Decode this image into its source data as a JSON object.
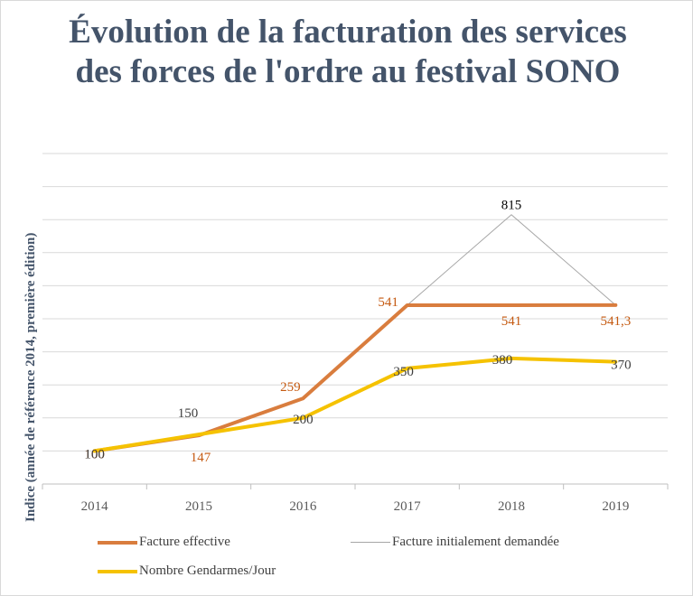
{
  "chart_data": {
    "type": "line",
    "title": "Évolution de la facturation des services des forces de l'ordre au festival SONO",
    "ylabel": "Indice (année de référence 2014, première édition)",
    "xlabel": "",
    "categories": [
      "2014",
      "2015",
      "2016",
      "2017",
      "2018",
      "2019"
    ],
    "ylim": [
      0,
      1000
    ],
    "grid": true,
    "legend_position": "bottom",
    "series": [
      {
        "name": "Facture effective",
        "values": [
          100,
          147,
          259,
          541,
          541,
          541.3
        ],
        "labels": [
          "100",
          "147",
          "259",
          "541",
          "541",
          "541,3"
        ],
        "color": "#d97d3e"
      },
      {
        "name": "Facture initialement demandée",
        "values": [
          null,
          null,
          null,
          541,
          815,
          541.3
        ],
        "labels": [
          "",
          "",
          "",
          "",
          "815",
          ""
        ],
        "color": "#a6a6a6"
      },
      {
        "name": "Nombre Gendarmes/Jour",
        "values": [
          100,
          150,
          200,
          350,
          380,
          370
        ],
        "labels": [
          "100",
          "150",
          "200",
          "350",
          "380",
          "370"
        ],
        "color": "#f5c200"
      }
    ]
  }
}
